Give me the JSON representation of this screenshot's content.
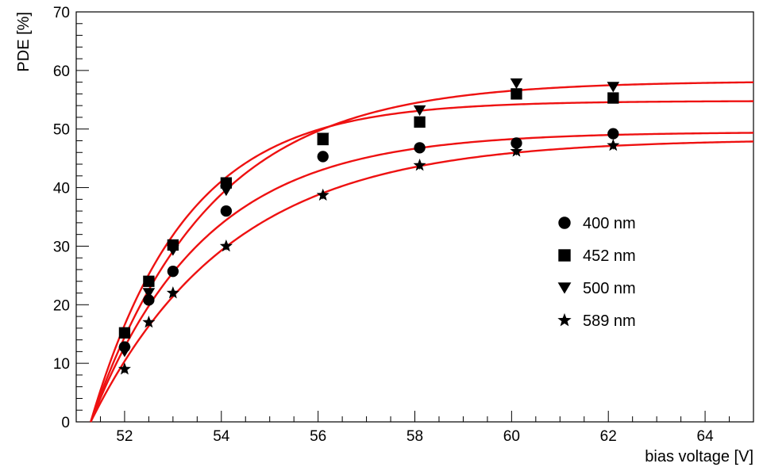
{
  "chart_data": {
    "type": "scatter",
    "title": "",
    "xlabel": "bias voltage [V]",
    "ylabel": "PDE [%]",
    "xlim": [
      51.0,
      65.0
    ],
    "ylim": [
      0,
      70
    ],
    "x_ticks": [
      52,
      54,
      56,
      58,
      60,
      62,
      64
    ],
    "y_ticks": [
      0,
      10,
      20,
      30,
      40,
      50,
      60,
      70
    ],
    "grid": false,
    "legend_position": "right-center",
    "fit_color": "#ee1111",
    "marker_color": "#000000",
    "series": [
      {
        "name": "400 nm",
        "marker": "circle",
        "x": [
          52.0,
          52.5,
          53.0,
          54.1,
          56.1,
          58.1,
          60.1,
          62.1
        ],
        "y": [
          12.8,
          20.8,
          25.7,
          36.0,
          45.3,
          46.8,
          47.6,
          49.2
        ],
        "fit": {
          "v0": 51.3,
          "pmax": 49.5,
          "tau": 2.35
        }
      },
      {
        "name": "452 nm",
        "marker": "square",
        "x": [
          52.0,
          52.5,
          53.0,
          54.1,
          56.1,
          58.1,
          60.1,
          62.1
        ],
        "y": [
          15.2,
          24.0,
          30.2,
          40.8,
          48.2,
          51.2,
          56.0,
          55.3
        ],
        "fit": {
          "v0": 51.3,
          "pmax": 54.8,
          "tau": 1.95
        }
      },
      {
        "name": "500 nm",
        "marker": "triangle-down",
        "x": [
          52.0,
          52.5,
          53.0,
          54.1,
          56.1,
          58.1,
          60.1,
          62.1
        ],
        "y": [
          12.0,
          22.0,
          29.3,
          39.5,
          48.5,
          53.2,
          57.8,
          57.2
        ],
        "fit": {
          "v0": 51.3,
          "pmax": 58.2,
          "tau": 2.45
        }
      },
      {
        "name": "589 nm",
        "marker": "star",
        "x": [
          52.0,
          52.5,
          53.0,
          54.1,
          56.1,
          58.1,
          60.1,
          62.1
        ],
        "y": [
          9.0,
          17.0,
          22.0,
          30.0,
          38.7,
          43.8,
          46.2,
          47.2
        ],
        "fit": {
          "v0": 51.3,
          "pmax": 48.3,
          "tau": 2.9
        }
      }
    ]
  }
}
